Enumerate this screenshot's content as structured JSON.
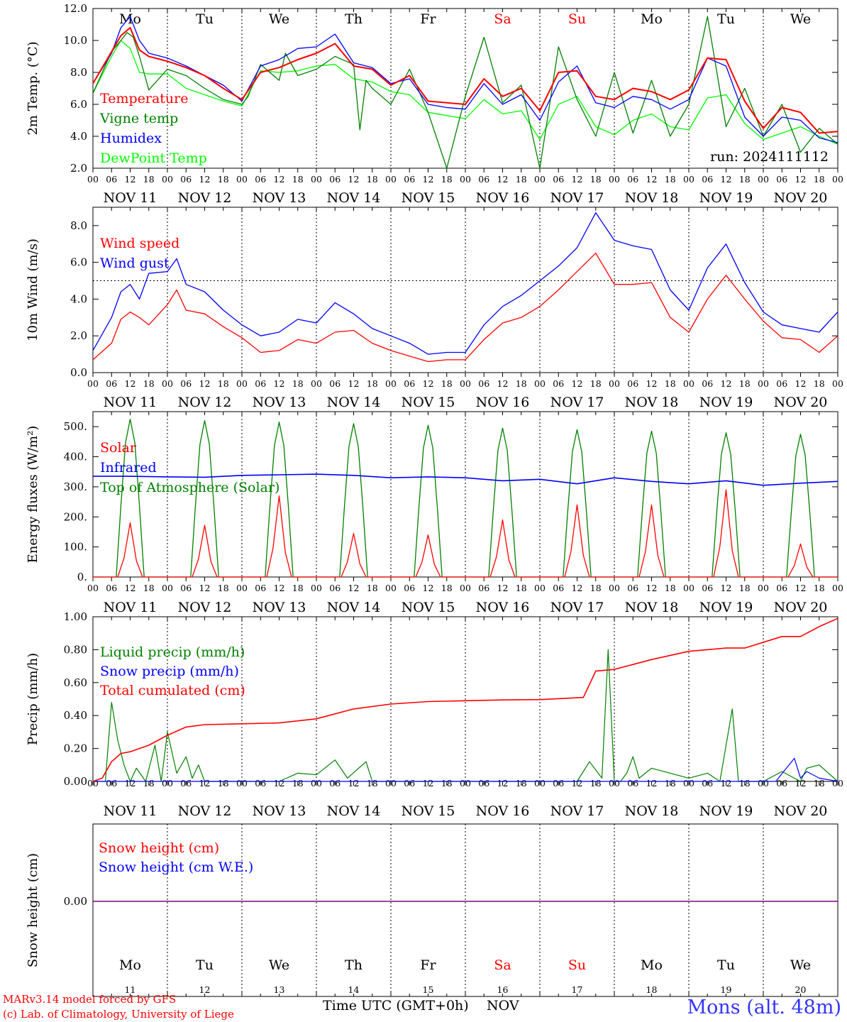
{
  "colors": {
    "red": "#ff0000",
    "green": "#008000",
    "blue": "#0000ff",
    "light_green": "#00ff00",
    "purple": "#800080",
    "station_blue": "#3333ff"
  },
  "time_axis": {
    "hour_labels": [
      "00",
      "06",
      "12",
      "18"
    ],
    "dates": [
      "NOV 11",
      "NOV 12",
      "NOV 13",
      "NOV 14",
      "NOV 15",
      "NOV 16",
      "NOV 17",
      "NOV 18",
      "NOV 19",
      "NOV 20"
    ],
    "weekdays": [
      "Mo",
      "Tu",
      "We",
      "Th",
      "Fr",
      "Sa",
      "Su",
      "Mo",
      "Tu",
      "We"
    ],
    "weekend_days": [
      5,
      6
    ],
    "day_numbers": [
      "11",
      "12",
      "13",
      "14",
      "15",
      "16",
      "17",
      "18",
      "19",
      "20"
    ],
    "month": "NOV",
    "xlabel": "Time UTC (GMT+0h)"
  },
  "footer": {
    "model_line": "MARv3.14 model forced by GFS",
    "credit_line": "(c) Lab. of Climatology, University of Liege",
    "station": "Mons (alt. 48m)"
  },
  "chart_data": [
    {
      "type": "line",
      "ylabel": "2m Temp. (°C)",
      "ylim": [
        2.0,
        12.0
      ],
      "yticks": [
        2.0,
        4.0,
        6.0,
        8.0,
        10.0,
        12.0
      ],
      "tick_labels": [
        "2.0",
        "4.0",
        "6.0",
        "8.0",
        "10.0",
        "12.0"
      ],
      "run_label": "run: 2024111112",
      "x_unit": "hours from 2024-11-11 00 UTC",
      "series": [
        {
          "name": "Temperature",
          "color": "#ff0000",
          "x": [
            0,
            6,
            9,
            12,
            15,
            18,
            24,
            30,
            36,
            42,
            48,
            54,
            60,
            66,
            72,
            78,
            84,
            90,
            96,
            102,
            108,
            114,
            120,
            126,
            132,
            138,
            144,
            150,
            156,
            162,
            168,
            174,
            180,
            186,
            192,
            198,
            204,
            210,
            216,
            222,
            228,
            234,
            240
          ],
          "values": [
            7.3,
            9.3,
            10.3,
            10.8,
            9.4,
            9.0,
            8.7,
            8.3,
            7.8,
            7.0,
            6.3,
            8.0,
            8.3,
            8.8,
            9.2,
            9.8,
            8.4,
            8.2,
            7.2,
            7.8,
            6.2,
            6.1,
            6.0,
            7.6,
            6.5,
            7.0,
            5.6,
            8.0,
            8.1,
            6.5,
            6.3,
            7.0,
            6.8,
            6.3,
            6.9,
            8.9,
            8.8,
            6.2,
            4.5,
            5.8,
            5.5,
            4.2,
            4.3
          ]
        },
        {
          "name": "Vigne temp",
          "color": "#008000",
          "x": [
            0,
            6,
            9,
            11,
            13,
            15,
            18,
            24,
            30,
            36,
            42,
            48,
            50,
            54,
            60,
            62,
            66,
            72,
            78,
            84,
            86,
            88,
            90,
            96,
            102,
            108,
            114,
            120,
            126,
            132,
            138,
            144,
            150,
            156,
            162,
            168,
            174,
            180,
            186,
            192,
            198,
            204,
            210,
            216,
            222,
            228,
            234,
            240
          ],
          "values": [
            6.7,
            9.3,
            10.0,
            10.5,
            10.2,
            9.0,
            6.9,
            8.2,
            7.8,
            7.0,
            6.3,
            6.0,
            6.5,
            8.5,
            7.5,
            9.2,
            7.8,
            8.2,
            9.0,
            8.5,
            4.4,
            7.5,
            7.0,
            6.0,
            8.2,
            5.5,
            2.0,
            6.5,
            10.2,
            6.1,
            7.2,
            2.0,
            9.6,
            6.3,
            4.0,
            8.0,
            4.2,
            7.5,
            4.0,
            6.0,
            11.5,
            4.6,
            7.0,
            4.0,
            6.0,
            3.0,
            4.5,
            3.5
          ]
        },
        {
          "name": "Humidex",
          "color": "#0000ff",
          "x": [
            0,
            6,
            9,
            12,
            15,
            18,
            24,
            30,
            36,
            42,
            48,
            54,
            60,
            66,
            72,
            78,
            84,
            90,
            96,
            102,
            108,
            114,
            120,
            126,
            132,
            138,
            144,
            150,
            156,
            162,
            168,
            174,
            180,
            186,
            192,
            198,
            204,
            210,
            216,
            222,
            228,
            234,
            240
          ],
          "values": [
            7.3,
            9.2,
            10.8,
            11.5,
            10.0,
            9.2,
            8.9,
            8.4,
            7.8,
            7.2,
            6.2,
            8.4,
            8.8,
            9.5,
            9.6,
            10.4,
            8.6,
            8.3,
            7.3,
            7.6,
            6.0,
            5.8,
            5.7,
            7.3,
            6.0,
            6.6,
            5.0,
            7.4,
            8.4,
            6.1,
            5.8,
            6.5,
            6.3,
            5.7,
            6.3,
            8.9,
            8.4,
            5.2,
            4.0,
            5.2,
            5.0,
            3.9,
            3.6
          ]
        },
        {
          "name": "DewPoint Temp",
          "color": "#00ff00",
          "x": [
            0,
            6,
            9,
            12,
            15,
            18,
            24,
            30,
            36,
            42,
            48,
            54,
            60,
            66,
            72,
            78,
            84,
            90,
            96,
            102,
            108,
            114,
            120,
            126,
            132,
            138,
            144,
            150,
            156,
            162,
            168,
            174,
            180,
            186,
            192,
            198,
            204,
            210,
            216,
            222,
            228,
            234,
            240
          ],
          "values": [
            6.7,
            9.0,
            10.0,
            9.5,
            8.0,
            7.9,
            7.9,
            7.0,
            6.6,
            6.2,
            5.9,
            8.1,
            8.0,
            8.1,
            8.4,
            8.5,
            7.6,
            7.4,
            6.8,
            6.6,
            5.5,
            5.3,
            5.1,
            6.3,
            5.4,
            5.6,
            3.8,
            6.0,
            6.5,
            4.6,
            4.1,
            5.0,
            5.4,
            4.6,
            4.4,
            6.4,
            6.6,
            4.8,
            3.8,
            4.2,
            4.6,
            4.0,
            3.5
          ]
        }
      ]
    },
    {
      "type": "line",
      "ylabel": "10m Wind (m/s)",
      "ylim": [
        0.0,
        9.0
      ],
      "yticks": [
        0.0,
        2.0,
        4.0,
        6.0,
        8.0
      ],
      "tick_labels": [
        "0.0",
        "2.0",
        "4.0",
        "6.0",
        "8.0"
      ],
      "reference_line": 5.0,
      "x_unit": "hours from 2024-11-11 00 UTC",
      "series": [
        {
          "name": "Wind speed",
          "color": "#ff0000",
          "x": [
            0,
            6,
            9,
            12,
            15,
            18,
            24,
            27,
            30,
            36,
            42,
            48,
            54,
            60,
            66,
            72,
            78,
            84,
            90,
            96,
            102,
            108,
            114,
            120,
            126,
            132,
            138,
            144,
            150,
            156,
            162,
            168,
            174,
            180,
            186,
            192,
            198,
            204,
            210,
            216,
            222,
            228,
            234,
            240
          ],
          "values": [
            0.7,
            1.6,
            2.9,
            3.3,
            3.0,
            2.6,
            3.7,
            4.5,
            3.4,
            3.2,
            2.5,
            1.9,
            1.1,
            1.2,
            1.8,
            1.6,
            2.2,
            2.3,
            1.6,
            1.2,
            0.9,
            0.6,
            0.7,
            0.7,
            1.8,
            2.7,
            3.0,
            3.6,
            4.5,
            5.5,
            6.5,
            4.8,
            4.8,
            4.9,
            3.0,
            2.2,
            4.0,
            5.3,
            4.0,
            2.8,
            1.9,
            1.8,
            1.1,
            2.0
          ]
        },
        {
          "name": "Wind gust",
          "color": "#0000ff",
          "x": [
            0,
            6,
            9,
            12,
            15,
            18,
            24,
            27,
            30,
            36,
            42,
            48,
            54,
            60,
            66,
            72,
            78,
            84,
            90,
            96,
            102,
            108,
            114,
            120,
            126,
            132,
            138,
            144,
            150,
            156,
            162,
            168,
            174,
            180,
            186,
            192,
            198,
            204,
            210,
            216,
            222,
            228,
            234,
            240
          ],
          "values": [
            1.2,
            3.0,
            4.4,
            4.8,
            4.0,
            5.4,
            5.5,
            6.2,
            4.8,
            4.4,
            3.4,
            2.6,
            2.0,
            2.2,
            2.9,
            2.7,
            3.8,
            3.2,
            2.4,
            2.0,
            1.6,
            1.0,
            1.1,
            1.1,
            2.6,
            3.6,
            4.2,
            5.0,
            5.8,
            6.8,
            8.7,
            7.2,
            6.9,
            6.7,
            4.5,
            3.4,
            5.7,
            7.0,
            4.9,
            3.3,
            2.6,
            2.4,
            2.2,
            3.3
          ]
        }
      ]
    },
    {
      "type": "line",
      "ylabel": "Energy fluxes (W/m²)",
      "ylim": [
        0,
        550
      ],
      "yticks": [
        0,
        100,
        200,
        300,
        400,
        500
      ],
      "tick_labels": [
        "0.",
        "100.",
        "200.",
        "300.",
        "400.",
        "500."
      ],
      "x_unit": "hours from 2024-11-11 00 UTC",
      "solar_noon_peaks": {
        "top_of_atmosphere": [
          525,
          520,
          515,
          510,
          505,
          495,
          490,
          485,
          480,
          475
        ],
        "solar": [
          180,
          172,
          270,
          145,
          140,
          190,
          240,
          240,
          290,
          110
        ]
      },
      "series": [
        {
          "name": "Solar",
          "color": "#ff0000",
          "note": "daily peaks near 12 UTC, see solar_noon_peaks.solar"
        },
        {
          "name": "Infrared",
          "color": "#0000ff",
          "x": [
            0,
            12,
            24,
            36,
            48,
            60,
            72,
            84,
            96,
            108,
            120,
            132,
            144,
            156,
            168,
            180,
            192,
            204,
            216,
            228,
            240
          ],
          "values": [
            335,
            335,
            333,
            332,
            338,
            340,
            342,
            338,
            330,
            333,
            330,
            320,
            325,
            310,
            330,
            318,
            310,
            320,
            305,
            312,
            318
          ]
        },
        {
          "name": "Top of Atmosphere (Solar)",
          "color": "#008000",
          "note": "daily peaks at 12 UTC, see solar_noon_peaks.top_of_atmosphere"
        }
      ]
    },
    {
      "type": "line",
      "ylabel": "Precip (mm/h)",
      "ylim": [
        0.0,
        1.0
      ],
      "yticks": [
        0.0,
        0.2,
        0.4,
        0.6,
        0.8,
        1.0
      ],
      "tick_labels": [
        "0.00",
        "0.20",
        "0.40",
        "0.60",
        "0.80",
        "1.00"
      ],
      "x_unit": "hours from 2024-11-11 00 UTC",
      "series": [
        {
          "name": "Liquid precip (mm/h)",
          "color": "#008000",
          "x": [
            0,
            4,
            6,
            8,
            10,
            12,
            14,
            17,
            20,
            22,
            24,
            27,
            30,
            32,
            34,
            36,
            48,
            60,
            66,
            72,
            78,
            82,
            88,
            90,
            96,
            114,
            120,
            144,
            156,
            160,
            164,
            166,
            168,
            170,
            172,
            174,
            176,
            180,
            186,
            192,
            198,
            202,
            206,
            208,
            210,
            212,
            216,
            222,
            228,
            230,
            234,
            240
          ],
          "values": [
            0.0,
            0.0,
            0.48,
            0.25,
            0.1,
            0.0,
            0.08,
            0.0,
            0.22,
            0.0,
            0.3,
            0.05,
            0.15,
            0.02,
            0.1,
            0.0,
            0.0,
            0.0,
            0.05,
            0.04,
            0.13,
            0.02,
            0.12,
            0.0,
            0.0,
            0.0,
            0.0,
            0.0,
            0.0,
            0.12,
            0.02,
            0.8,
            0.0,
            0.0,
            0.05,
            0.15,
            0.02,
            0.08,
            0.05,
            0.02,
            0.05,
            0.0,
            0.44,
            0.0,
            0.0,
            0.0,
            0.0,
            0.06,
            0.0,
            0.08,
            0.1,
            0.0
          ]
        },
        {
          "name": "Snow precip (mm/h)",
          "color": "#0000ff",
          "x": [
            0,
            220,
            226,
            228,
            230,
            234,
            240
          ],
          "values": [
            0.0,
            0.0,
            0.14,
            0.02,
            0.06,
            0.02,
            0.0
          ]
        },
        {
          "name": "Total cumulated (cm)",
          "color": "#ff0000",
          "x": [
            0,
            3,
            6,
            9,
            12,
            18,
            24,
            30,
            36,
            48,
            60,
            72,
            84,
            96,
            108,
            120,
            132,
            144,
            158,
            162,
            168,
            180,
            192,
            204,
            210,
            222,
            228,
            234,
            240
          ],
          "values": [
            0.0,
            0.02,
            0.12,
            0.17,
            0.18,
            0.22,
            0.28,
            0.33,
            0.345,
            0.35,
            0.355,
            0.38,
            0.44,
            0.47,
            0.485,
            0.49,
            0.495,
            0.497,
            0.51,
            0.67,
            0.68,
            0.74,
            0.79,
            0.81,
            0.81,
            0.88,
            0.88,
            0.94,
            0.99
          ]
        }
      ]
    },
    {
      "type": "line",
      "ylabel": "Snow height (cm)",
      "yticks": [
        0.0
      ],
      "tick_labels": [
        "0.00"
      ],
      "x_unit": "hours from 2024-11-11 00 UTC",
      "series": [
        {
          "name": "Snow height (cm)",
          "color": "#ff0000",
          "x": [
            0,
            240
          ],
          "values": [
            0.0,
            0.0
          ]
        },
        {
          "name": "Snow height (cm W.E.)",
          "color": "#0000ff",
          "x": [
            0,
            240
          ],
          "values": [
            0.0,
            0.0
          ]
        }
      ]
    }
  ]
}
